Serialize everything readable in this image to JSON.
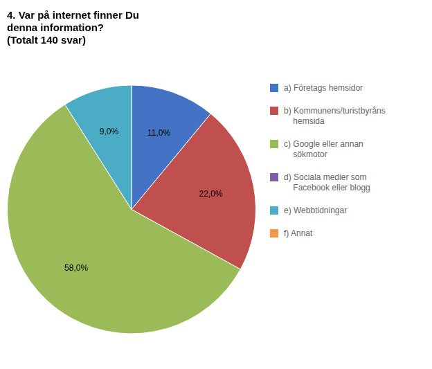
{
  "chart_data": {
    "type": "pie",
    "title": [
      "4. Var på internet finner Du",
      "denna information?",
      "(Totalt 140 svar)"
    ],
    "categories": [
      "a) Företags hemsidor",
      "b) Kommunens/turistbyråns\n    hemsida",
      "c) Google eller annan\n    sökmotor",
      "d) Sociala medier som\n    Facebook eller blogg",
      "e) Webbtidningar",
      "f) Annat"
    ],
    "values": [
      11.0,
      22.0,
      58.0,
      0.0,
      9.0,
      0.0
    ],
    "value_labels": [
      "11,0%",
      "22,0%",
      "58,0%",
      null,
      "9,0%",
      null
    ],
    "colors": [
      "#4472C4",
      "#C0504D",
      "#9BBB59",
      "#7F5FA6",
      "#4BACC6",
      "#F79646"
    ],
    "data_labels": true,
    "legend": "right"
  }
}
